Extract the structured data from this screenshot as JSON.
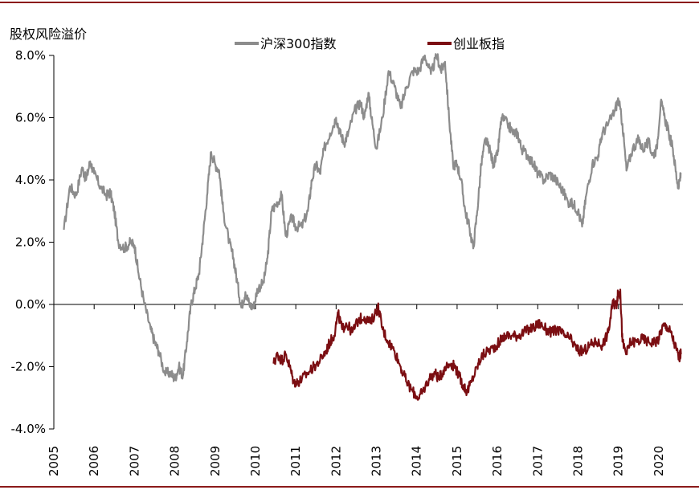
{
  "chart_data": {
    "type": "line",
    "title": "",
    "ylabel": "股权风险溢价",
    "xlabel": "",
    "ylim": [
      -4.0,
      8.0
    ],
    "yticks": [
      "8.0%",
      "6.0%",
      "4.0%",
      "2.0%",
      "0.0%",
      "-2.0%",
      "-4.0%"
    ],
    "ytick_values": [
      8,
      6,
      4,
      2,
      0,
      -2,
      -4
    ],
    "xlim": [
      2005.0,
      2020.6
    ],
    "xticks": [
      "2005",
      "2006",
      "2007",
      "2008",
      "2009",
      "2010",
      "2011",
      "2012",
      "2013",
      "2014",
      "2015",
      "2016",
      "2017",
      "2018",
      "2019",
      "2020"
    ],
    "xtick_values": [
      2005,
      2006,
      2007,
      2008,
      2009,
      2010,
      2011,
      2012,
      2013,
      2014,
      2015,
      2016,
      2017,
      2018,
      2019,
      2020
    ],
    "grid": false,
    "legend_position": "top",
    "series": [
      {
        "name": "沪深300指数",
        "color": "#8c8c8c",
        "points": [
          [
            2005.25,
            2.4
          ],
          [
            2005.4,
            3.8
          ],
          [
            2005.55,
            3.5
          ],
          [
            2005.7,
            4.4
          ],
          [
            2005.8,
            4.0
          ],
          [
            2005.9,
            4.6
          ],
          [
            2006.0,
            4.2
          ],
          [
            2006.15,
            3.8
          ],
          [
            2006.3,
            3.5
          ],
          [
            2006.4,
            3.6
          ],
          [
            2006.5,
            3.0
          ],
          [
            2006.6,
            2.0
          ],
          [
            2006.75,
            1.8
          ],
          [
            2006.9,
            2.0
          ],
          [
            2007.0,
            1.9
          ],
          [
            2007.1,
            1.0
          ],
          [
            2007.25,
            0.0
          ],
          [
            2007.4,
            -0.8
          ],
          [
            2007.5,
            -1.2
          ],
          [
            2007.6,
            -1.5
          ],
          [
            2007.75,
            -2.2
          ],
          [
            2007.9,
            -2.2
          ],
          [
            2008.0,
            -2.4
          ],
          [
            2008.1,
            -2.0
          ],
          [
            2008.2,
            -2.3
          ],
          [
            2008.3,
            -1.2
          ],
          [
            2008.4,
            0.0
          ],
          [
            2008.5,
            0.5
          ],
          [
            2008.6,
            1.0
          ],
          [
            2008.7,
            2.2
          ],
          [
            2008.8,
            3.5
          ],
          [
            2008.9,
            4.9
          ],
          [
            2009.0,
            4.5
          ],
          [
            2009.1,
            4.3
          ],
          [
            2009.2,
            3.0
          ],
          [
            2009.35,
            2.0
          ],
          [
            2009.45,
            1.5
          ],
          [
            2009.55,
            0.7
          ],
          [
            2009.65,
            -0.1
          ],
          [
            2009.75,
            0.4
          ],
          [
            2009.85,
            0.0
          ],
          [
            2009.95,
            -0.1
          ],
          [
            2010.05,
            0.5
          ],
          [
            2010.2,
            0.7
          ],
          [
            2010.3,
            1.5
          ],
          [
            2010.4,
            3.0
          ],
          [
            2010.5,
            3.2
          ],
          [
            2010.65,
            3.5
          ],
          [
            2010.75,
            2.2
          ],
          [
            2010.9,
            2.8
          ],
          [
            2011.0,
            2.5
          ],
          [
            2011.15,
            2.5
          ],
          [
            2011.3,
            3.0
          ],
          [
            2011.4,
            4.0
          ],
          [
            2011.5,
            4.5
          ],
          [
            2011.6,
            4.2
          ],
          [
            2011.7,
            5.0
          ],
          [
            2011.85,
            5.5
          ],
          [
            2012.0,
            6.0
          ],
          [
            2012.1,
            5.5
          ],
          [
            2012.2,
            5.2
          ],
          [
            2012.3,
            5.5
          ],
          [
            2012.45,
            6.2
          ],
          [
            2012.6,
            6.5
          ],
          [
            2012.7,
            6.0
          ],
          [
            2012.8,
            6.8
          ],
          [
            2012.9,
            5.8
          ],
          [
            2013.0,
            5.0
          ],
          [
            2013.15,
            6.0
          ],
          [
            2013.3,
            7.5
          ],
          [
            2013.45,
            7.0
          ],
          [
            2013.6,
            6.3
          ],
          [
            2013.75,
            7.0
          ],
          [
            2013.9,
            7.5
          ],
          [
            2014.05,
            7.5
          ],
          [
            2014.2,
            8.0
          ],
          [
            2014.35,
            7.4
          ],
          [
            2014.5,
            8.0
          ],
          [
            2014.6,
            7.5
          ],
          [
            2014.7,
            7.8
          ],
          [
            2014.8,
            6.0
          ],
          [
            2014.9,
            4.5
          ],
          [
            2015.0,
            4.5
          ],
          [
            2015.1,
            4.0
          ],
          [
            2015.2,
            3.0
          ],
          [
            2015.3,
            2.5
          ],
          [
            2015.4,
            1.8
          ],
          [
            2015.5,
            3.0
          ],
          [
            2015.6,
            4.5
          ],
          [
            2015.7,
            5.3
          ],
          [
            2015.8,
            5.0
          ],
          [
            2015.9,
            4.5
          ],
          [
            2016.0,
            4.8
          ],
          [
            2016.1,
            6.0
          ],
          [
            2016.25,
            5.8
          ],
          [
            2016.4,
            5.5
          ],
          [
            2016.5,
            5.5
          ],
          [
            2016.6,
            5.0
          ],
          [
            2016.75,
            4.8
          ],
          [
            2016.9,
            4.5
          ],
          [
            2017.0,
            4.2
          ],
          [
            2017.15,
            4.0
          ],
          [
            2017.3,
            4.2
          ],
          [
            2017.45,
            4.0
          ],
          [
            2017.6,
            3.7
          ],
          [
            2017.75,
            3.3
          ],
          [
            2017.9,
            3.2
          ],
          [
            2018.0,
            3.0
          ],
          [
            2018.1,
            2.5
          ],
          [
            2018.2,
            3.5
          ],
          [
            2018.35,
            4.5
          ],
          [
            2018.5,
            4.8
          ],
          [
            2018.6,
            5.5
          ],
          [
            2018.75,
            5.8
          ],
          [
            2018.9,
            6.2
          ],
          [
            2019.0,
            6.6
          ],
          [
            2019.1,
            5.8
          ],
          [
            2019.2,
            4.3
          ],
          [
            2019.35,
            5.0
          ],
          [
            2019.5,
            5.3
          ],
          [
            2019.6,
            5.0
          ],
          [
            2019.75,
            5.2
          ],
          [
            2019.85,
            4.8
          ],
          [
            2019.95,
            5.0
          ],
          [
            2020.05,
            6.5
          ],
          [
            2020.15,
            6.0
          ],
          [
            2020.25,
            5.5
          ],
          [
            2020.35,
            5.0
          ],
          [
            2020.45,
            4.0
          ],
          [
            2020.5,
            3.8
          ],
          [
            2020.55,
            4.2
          ]
        ]
      },
      {
        "name": "创业板指",
        "color": "#7b0e12",
        "points": [
          [
            2010.45,
            -1.9
          ],
          [
            2010.55,
            -1.6
          ],
          [
            2010.65,
            -1.8
          ],
          [
            2010.75,
            -1.6
          ],
          [
            2010.85,
            -2.0
          ],
          [
            2010.95,
            -2.5
          ],
          [
            2011.05,
            -2.5
          ],
          [
            2011.15,
            -2.4
          ],
          [
            2011.3,
            -2.2
          ],
          [
            2011.45,
            -2.0
          ],
          [
            2011.6,
            -1.8
          ],
          [
            2011.75,
            -1.5
          ],
          [
            2011.85,
            -1.2
          ],
          [
            2011.95,
            -1.0
          ],
          [
            2012.05,
            -0.3
          ],
          [
            2012.15,
            -0.8
          ],
          [
            2012.25,
            -0.6
          ],
          [
            2012.4,
            -0.9
          ],
          [
            2012.55,
            -0.5
          ],
          [
            2012.7,
            -0.4
          ],
          [
            2012.85,
            -0.6
          ],
          [
            2013.0,
            -0.2
          ],
          [
            2013.05,
            -0.1
          ],
          [
            2013.15,
            -0.8
          ],
          [
            2013.3,
            -1.2
          ],
          [
            2013.45,
            -1.5
          ],
          [
            2013.6,
            -2.0
          ],
          [
            2013.75,
            -2.5
          ],
          [
            2013.9,
            -2.8
          ],
          [
            2014.05,
            -3.0
          ],
          [
            2014.15,
            -2.8
          ],
          [
            2014.3,
            -2.4
          ],
          [
            2014.45,
            -2.2
          ],
          [
            2014.55,
            -2.4
          ],
          [
            2014.7,
            -2.0
          ],
          [
            2014.85,
            -1.9
          ],
          [
            2014.95,
            -2.0
          ],
          [
            2015.05,
            -2.3
          ],
          [
            2015.15,
            -2.6
          ],
          [
            2015.25,
            -2.8
          ],
          [
            2015.35,
            -2.5
          ],
          [
            2015.5,
            -2.0
          ],
          [
            2015.6,
            -1.7
          ],
          [
            2015.75,
            -1.5
          ],
          [
            2015.9,
            -1.4
          ],
          [
            2016.05,
            -1.2
          ],
          [
            2016.2,
            -1.0
          ],
          [
            2016.35,
            -1.0
          ],
          [
            2016.5,
            -1.0
          ],
          [
            2016.65,
            -0.9
          ],
          [
            2016.8,
            -0.8
          ],
          [
            2016.95,
            -0.7
          ],
          [
            2017.05,
            -0.6
          ],
          [
            2017.2,
            -0.8
          ],
          [
            2017.35,
            -0.9
          ],
          [
            2017.5,
            -0.8
          ],
          [
            2017.65,
            -1.0
          ],
          [
            2017.8,
            -1.1
          ],
          [
            2017.95,
            -1.4
          ],
          [
            2018.05,
            -1.5
          ],
          [
            2018.15,
            -1.5
          ],
          [
            2018.3,
            -1.3
          ],
          [
            2018.45,
            -1.2
          ],
          [
            2018.6,
            -1.3
          ],
          [
            2018.75,
            -0.9
          ],
          [
            2018.85,
            0.0
          ],
          [
            2018.95,
            0.0
          ],
          [
            2019.0,
            0.4
          ],
          [
            2019.05,
            0.3
          ],
          [
            2019.1,
            -1.2
          ],
          [
            2019.2,
            -1.6
          ],
          [
            2019.3,
            -1.2
          ],
          [
            2019.45,
            -1.2
          ],
          [
            2019.6,
            -1.1
          ],
          [
            2019.75,
            -1.2
          ],
          [
            2019.9,
            -1.2
          ],
          [
            2020.0,
            -1.1
          ],
          [
            2020.1,
            -0.7
          ],
          [
            2020.2,
            -0.7
          ],
          [
            2020.3,
            -0.9
          ],
          [
            2020.4,
            -1.3
          ],
          [
            2020.5,
            -1.7
          ],
          [
            2020.55,
            -1.6
          ]
        ]
      }
    ]
  }
}
